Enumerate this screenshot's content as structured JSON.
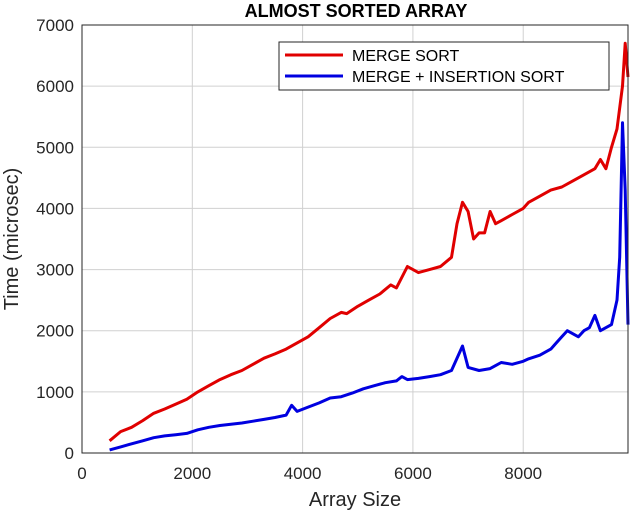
{
  "chart_data": {
    "type": "line",
    "title": "ALMOST SORTED ARRAY",
    "xlabel": "Array Size",
    "ylabel": "Time (microsec)",
    "xlim": [
      0,
      9900
    ],
    "ylim": [
      0,
      7000
    ],
    "xticks": [
      0,
      2000,
      4000,
      6000,
      8000
    ],
    "yticks": [
      0,
      1000,
      2000,
      3000,
      4000,
      5000,
      6000,
      7000
    ],
    "grid": true,
    "legend": "top-right",
    "series": [
      {
        "name": "MERGE SORT",
        "color": "#e00000",
        "x": [
          500,
          700,
          900,
          1100,
          1300,
          1500,
          1700,
          1900,
          2100,
          2300,
          2500,
          2700,
          2900,
          3100,
          3300,
          3500,
          3700,
          3900,
          4100,
          4300,
          4500,
          4700,
          4800,
          5000,
          5200,
          5400,
          5600,
          5700,
          5900,
          6100,
          6300,
          6500,
          6700,
          6800,
          6900,
          7000,
          7100,
          7200,
          7300,
          7400,
          7500,
          7600,
          7800,
          8000,
          8100,
          8300,
          8500,
          8700,
          8900,
          9100,
          9300,
          9400,
          9500,
          9600,
          9700,
          9800,
          9850,
          9900
        ],
        "y": [
          200,
          350,
          420,
          530,
          650,
          720,
          800,
          880,
          1000,
          1100,
          1200,
          1280,
          1350,
          1450,
          1550,
          1620,
          1700,
          1800,
          1900,
          2050,
          2200,
          2300,
          2280,
          2400,
          2500,
          2600,
          2750,
          2700,
          3050,
          2950,
          3000,
          3050,
          3200,
          3750,
          4100,
          3950,
          3500,
          3600,
          3600,
          3950,
          3750,
          3800,
          3900,
          4000,
          4100,
          4200,
          4300,
          4350,
          4450,
          4550,
          4650,
          4800,
          4650,
          5000,
          5300,
          6000,
          6700,
          6150
        ]
      },
      {
        "name": "MERGE + INSERTION SORT",
        "color": "#0000e0",
        "x": [
          500,
          700,
          900,
          1100,
          1300,
          1500,
          1700,
          1900,
          2100,
          2300,
          2500,
          2700,
          2900,
          3100,
          3300,
          3500,
          3700,
          3800,
          3900,
          4100,
          4300,
          4500,
          4700,
          4900,
          5100,
          5300,
          5500,
          5700,
          5800,
          5900,
          6100,
          6300,
          6500,
          6700,
          6900,
          7000,
          7200,
          7400,
          7500,
          7600,
          7800,
          8000,
          8100,
          8300,
          8500,
          8600,
          8700,
          8800,
          9000,
          9100,
          9200,
          9300,
          9400,
          9600,
          9700,
          9750,
          9800,
          9850,
          9900
        ],
        "y": [
          50,
          100,
          150,
          200,
          250,
          280,
          300,
          320,
          380,
          420,
          450,
          470,
          490,
          520,
          550,
          580,
          620,
          780,
          680,
          750,
          820,
          900,
          920,
          980,
          1050,
          1100,
          1150,
          1180,
          1250,
          1200,
          1220,
          1250,
          1280,
          1350,
          1750,
          1400,
          1350,
          1380,
          1430,
          1480,
          1450,
          1500,
          1540,
          1600,
          1700,
          1800,
          1900,
          2000,
          1900,
          2000,
          2050,
          2250,
          2000,
          2100,
          2500,
          3200,
          5400,
          4300,
          2100
        ]
      }
    ]
  }
}
